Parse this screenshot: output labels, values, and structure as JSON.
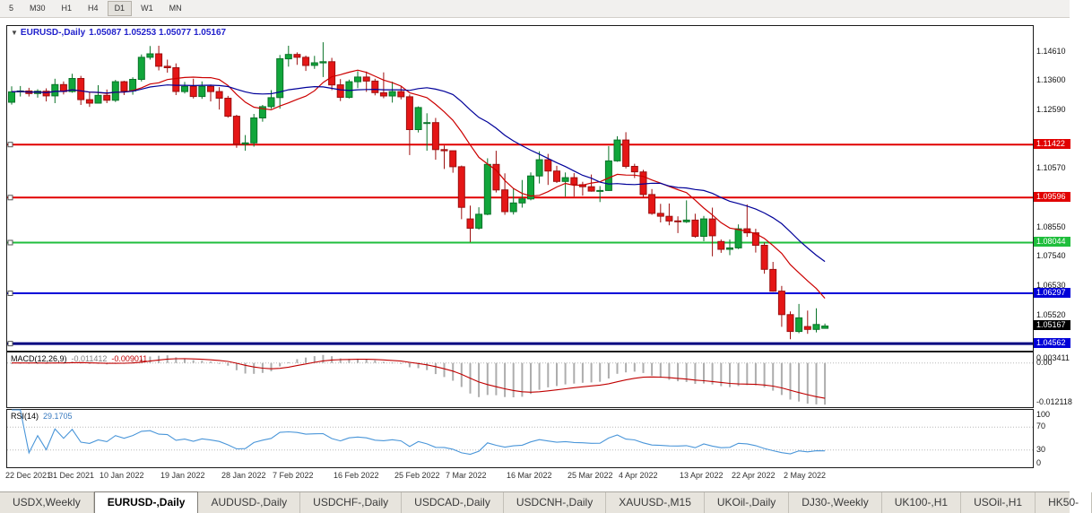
{
  "window": {
    "timeframes": [
      {
        "label": "5",
        "active": false
      },
      {
        "label": "M30",
        "active": false
      },
      {
        "label": "H1",
        "active": false
      },
      {
        "label": "H4",
        "active": false
      },
      {
        "label": "D1",
        "active": true
      },
      {
        "label": "W1",
        "active": false
      },
      {
        "label": "MN",
        "active": false
      }
    ]
  },
  "header": {
    "collapse_icon": "▼",
    "symbol": "EURUSD-,Daily",
    "ohlc": "1.05087 1.05253 1.05077 1.05167"
  },
  "colors": {
    "candle_up": "#11a63b",
    "candle_up_border": "#0a7328",
    "candle_down": "#e51616",
    "candle_down_border": "#9c0f0f"
  },
  "chart_data": {
    "type": "candlestick",
    "title": "EURUSD-,Daily",
    "y_axis": {
      "max": 1.15509,
      "min": 1.04318,
      "labels": [
        {
          "text": "1.14610",
          "kind": "plain"
        },
        {
          "text": "1.13600",
          "kind": "plain"
        },
        {
          "text": "1.12590",
          "kind": "plain"
        },
        {
          "text": "1.11422",
          "kind": "badge",
          "bg": "#e10000"
        },
        {
          "text": "1.10570",
          "kind": "plain"
        },
        {
          "text": "1.09596",
          "kind": "badge",
          "bg": "#e10000"
        },
        {
          "text": "1.08550",
          "kind": "plain"
        },
        {
          "text": "1.08044",
          "kind": "badge",
          "bg": "#1fbe3c"
        },
        {
          "text": "1.07540",
          "kind": "plain"
        },
        {
          "text": "1.06530",
          "kind": "plain"
        },
        {
          "text": "1.06297",
          "kind": "badge",
          "bg": "#0000d8"
        },
        {
          "text": "1.05520",
          "kind": "plain"
        },
        {
          "text": "1.05167",
          "kind": "badge",
          "bg": "#000000"
        },
        {
          "text": "1.04562",
          "kind": "badge",
          "bg": "#0000d8"
        }
      ]
    },
    "x_tick_dates": [
      {
        "label": "22 Dec 2021",
        "i": 0
      },
      {
        "label": "31 Dec 2021",
        "i": 7
      },
      {
        "label": "10 Jan 2022",
        "i": 13
      },
      {
        "label": "19 Jan 2022",
        "i": 20
      },
      {
        "label": "28 Jan 2022",
        "i": 27
      },
      {
        "label": "7 Feb 2022",
        "i": 33
      },
      {
        "label": "16 Feb 2022",
        "i": 40
      },
      {
        "label": "25 Feb 2022",
        "i": 47
      },
      {
        "label": "7 Mar 2022",
        "i": 53
      },
      {
        "label": "16 Mar 2022",
        "i": 60
      },
      {
        "label": "25 Mar 2022",
        "i": 67
      },
      {
        "label": "4 Apr 2022",
        "i": 73
      },
      {
        "label": "13 Apr 2022",
        "i": 80
      },
      {
        "label": "22 Apr 2022",
        "i": 86
      },
      {
        "label": "2 May 2022",
        "i": 92
      }
    ],
    "hlines": [
      {
        "price": 1.11422,
        "color": "#e10000",
        "width": 2
      },
      {
        "price": 1.09596,
        "color": "#e10000",
        "width": 2
      },
      {
        "price": 1.08044,
        "color": "#1fbe3c",
        "width": 2
      },
      {
        "price": 1.06297,
        "color": "#0000d8",
        "width": 2
      },
      {
        "price": 1.04562,
        "color": "#000080",
        "width": 3
      }
    ],
    "moving_averages": [
      {
        "period": 10,
        "color": "#cc0000"
      },
      {
        "period": 21,
        "color": "#000099"
      }
    ],
    "last_price": 1.05167,
    "candles": [
      [
        1.1288,
        1.1343,
        1.128,
        1.1324
      ],
      [
        1.1324,
        1.1344,
        1.1308,
        1.1327
      ],
      [
        1.1327,
        1.1338,
        1.1308,
        1.1318
      ],
      [
        1.1318,
        1.1333,
        1.1304,
        1.1326
      ],
      [
        1.1326,
        1.1336,
        1.1291,
        1.131
      ],
      [
        1.131,
        1.1369,
        1.1285,
        1.1349
      ],
      [
        1.1349,
        1.136,
        1.1315,
        1.1325
      ],
      [
        1.1325,
        1.1386,
        1.1321,
        1.137
      ],
      [
        1.137,
        1.1379,
        1.1279,
        1.1297
      ],
      [
        1.1297,
        1.1323,
        1.1272,
        1.1285
      ],
      [
        1.1285,
        1.1347,
        1.1284,
        1.1312
      ],
      [
        1.1312,
        1.1332,
        1.1285,
        1.1295
      ],
      [
        1.1295,
        1.1365,
        1.1289,
        1.1359
      ],
      [
        1.1359,
        1.1362,
        1.1313,
        1.1327
      ],
      [
        1.1327,
        1.1374,
        1.1314,
        1.1367
      ],
      [
        1.1367,
        1.1453,
        1.136,
        1.1443
      ],
      [
        1.1443,
        1.1482,
        1.1435,
        1.1455
      ],
      [
        1.1455,
        1.1483,
        1.1398,
        1.1412
      ],
      [
        1.1412,
        1.1435,
        1.139,
        1.1407
      ],
      [
        1.1407,
        1.1422,
        1.1313,
        1.1325
      ],
      [
        1.1325,
        1.1358,
        1.1318,
        1.1343
      ],
      [
        1.1343,
        1.1369,
        1.1301,
        1.1308
      ],
      [
        1.1308,
        1.136,
        1.13,
        1.1343
      ],
      [
        1.1343,
        1.1349,
        1.1291,
        1.1325
      ],
      [
        1.1325,
        1.134,
        1.1263,
        1.1302
      ],
      [
        1.1302,
        1.131,
        1.1235,
        1.124
      ],
      [
        1.124,
        1.1245,
        1.1131,
        1.1144
      ],
      [
        1.1144,
        1.1175,
        1.1121,
        1.1148
      ],
      [
        1.1148,
        1.1248,
        1.1135,
        1.1234
      ],
      [
        1.1234,
        1.1279,
        1.1221,
        1.1273
      ],
      [
        1.1273,
        1.133,
        1.1266,
        1.1304
      ],
      [
        1.1304,
        1.1451,
        1.1266,
        1.1438
      ],
      [
        1.1438,
        1.1483,
        1.1411,
        1.1453
      ],
      [
        1.1453,
        1.146,
        1.1417,
        1.1443
      ],
      [
        1.1443,
        1.1449,
        1.1396,
        1.1415
      ],
      [
        1.1415,
        1.1448,
        1.1403,
        1.1424
      ],
      [
        1.1424,
        1.1495,
        1.1375,
        1.1428
      ],
      [
        1.1428,
        1.1441,
        1.133,
        1.1348
      ],
      [
        1.1348,
        1.1368,
        1.1292,
        1.1305
      ],
      [
        1.1305,
        1.1366,
        1.1301,
        1.1359
      ],
      [
        1.1359,
        1.1395,
        1.1337,
        1.1375
      ],
      [
        1.1375,
        1.1394,
        1.1324,
        1.1361
      ],
      [
        1.1361,
        1.1369,
        1.1312,
        1.1321
      ],
      [
        1.1321,
        1.1391,
        1.1302,
        1.131
      ],
      [
        1.131,
        1.1359,
        1.1287,
        1.1325
      ],
      [
        1.1325,
        1.1344,
        1.1298,
        1.1307
      ],
      [
        1.1307,
        1.1315,
        1.1106,
        1.1194
      ],
      [
        1.1194,
        1.1274,
        1.1184,
        1.127
      ],
      [
        1.1216,
        1.125,
        1.1121,
        1.1218
      ],
      [
        1.1218,
        1.1234,
        1.109,
        1.1125
      ],
      [
        1.1125,
        1.1139,
        1.1058,
        1.1121
      ],
      [
        1.1121,
        1.1121,
        1.1045,
        1.1066
      ],
      [
        1.1066,
        1.107,
        1.0885,
        1.0926
      ],
      [
        1.0886,
        1.0932,
        1.0806,
        1.0854
      ],
      [
        1.0854,
        1.0926,
        1.0849,
        1.0902
      ],
      [
        1.0902,
        1.1095,
        1.0899,
        1.1074
      ],
      [
        1.1074,
        1.1121,
        1.0977,
        1.0986
      ],
      [
        1.0986,
        1.1043,
        1.09,
        1.0911
      ],
      [
        1.0911,
        1.0992,
        1.0901,
        1.0941
      ],
      [
        1.0941,
        1.102,
        1.0925,
        1.0955
      ],
      [
        1.0955,
        1.1046,
        1.095,
        1.1034
      ],
      [
        1.1034,
        1.1119,
        1.1008,
        1.109
      ],
      [
        1.109,
        1.111,
        1.1003,
        1.1051
      ],
      [
        1.1051,
        1.1069,
        1.101,
        1.1015
      ],
      [
        1.1015,
        1.1046,
        1.0963,
        1.1028
      ],
      [
        1.1028,
        1.1044,
        1.0963,
        1.1004
      ],
      [
        1.1004,
        1.1014,
        1.0966,
        1.0997
      ],
      [
        1.0997,
        1.1039,
        1.098,
        1.0982
      ],
      [
        1.0982,
        1.0999,
        1.0944,
        1.0984
      ],
      [
        1.0984,
        1.1137,
        1.0982,
        1.1086
      ],
      [
        1.1086,
        1.1171,
        1.1083,
        1.1158
      ],
      [
        1.1158,
        1.1185,
        1.106,
        1.1067
      ],
      [
        1.1067,
        1.1076,
        1.1027,
        1.1048
      ],
      [
        1.1048,
        1.1055,
        1.0961,
        1.097
      ],
      [
        1.097,
        1.0989,
        1.09,
        1.0905
      ],
      [
        1.0905,
        1.0938,
        1.0874,
        1.0895
      ],
      [
        1.0895,
        1.0939,
        1.0864,
        1.0879
      ],
      [
        1.0879,
        1.0895,
        1.0837,
        1.0876
      ],
      [
        1.0876,
        1.095,
        1.0872,
        1.0882
      ],
      [
        1.0882,
        1.0904,
        1.0821,
        1.0826
      ],
      [
        1.0826,
        1.0896,
        1.0809,
        1.0886
      ],
      [
        1.0886,
        1.0925,
        1.0757,
        1.0828
      ],
      [
        1.0808,
        1.0815,
        1.0769,
        1.0781
      ],
      [
        1.0781,
        1.0815,
        1.0761,
        1.0786
      ],
      [
        1.0786,
        1.0867,
        1.0782,
        1.0852
      ],
      [
        1.0852,
        1.0936,
        1.0824,
        1.0838
      ],
      [
        1.0838,
        1.0852,
        1.077,
        1.0795
      ],
      [
        1.0795,
        1.0805,
        1.0697,
        1.0712
      ],
      [
        1.0712,
        1.0738,
        1.0635,
        1.0637
      ],
      [
        1.0637,
        1.0655,
        1.0514,
        1.0556
      ],
      [
        1.0556,
        1.0567,
        1.0471,
        1.0498
      ],
      [
        1.0498,
        1.0593,
        1.0492,
        1.0545
      ],
      [
        1.0515,
        1.057,
        1.049,
        1.0505
      ],
      [
        1.0505,
        1.0578,
        1.0495,
        1.0522
      ],
      [
        1.05087,
        1.05253,
        1.05077,
        1.05167
      ]
    ],
    "macd": {
      "name": "MACD(12,26,9)",
      "value_main": "-0.011412",
      "value_signal": "-0.009011",
      "fast": 12,
      "slow": 26,
      "signal": 9,
      "bar_color": "#adadad",
      "signal_color": "#c00000",
      "axis_labels": [
        "0.003411",
        "0.00",
        "-0.012118"
      ]
    },
    "rsi": {
      "name": "RSI(14)",
      "value": "29.1705",
      "period": 14,
      "levels": [
        70,
        30
      ],
      "line_color": "#4a96d9",
      "axis_labels": [
        100,
        70,
        30,
        0
      ]
    }
  },
  "tabs": [
    {
      "label": "USDX,Weekly",
      "active": false
    },
    {
      "label": "EURUSD-,Daily",
      "active": true
    },
    {
      "label": "AUDUSD-,Daily",
      "active": false
    },
    {
      "label": "USDCHF-,Daily",
      "active": false
    },
    {
      "label": "USDCAD-,Daily",
      "active": false
    },
    {
      "label": "USDCNH-,Daily",
      "active": false
    },
    {
      "label": "XAUUSD-,M15",
      "active": false
    },
    {
      "label": "UKOil-,Daily",
      "active": false
    },
    {
      "label": "DJ30-,Weekly",
      "active": false
    },
    {
      "label": "UK100-,H1",
      "active": false
    },
    {
      "label": "USOil-,H1",
      "active": false
    },
    {
      "label": "HK50-",
      "active": false
    }
  ]
}
